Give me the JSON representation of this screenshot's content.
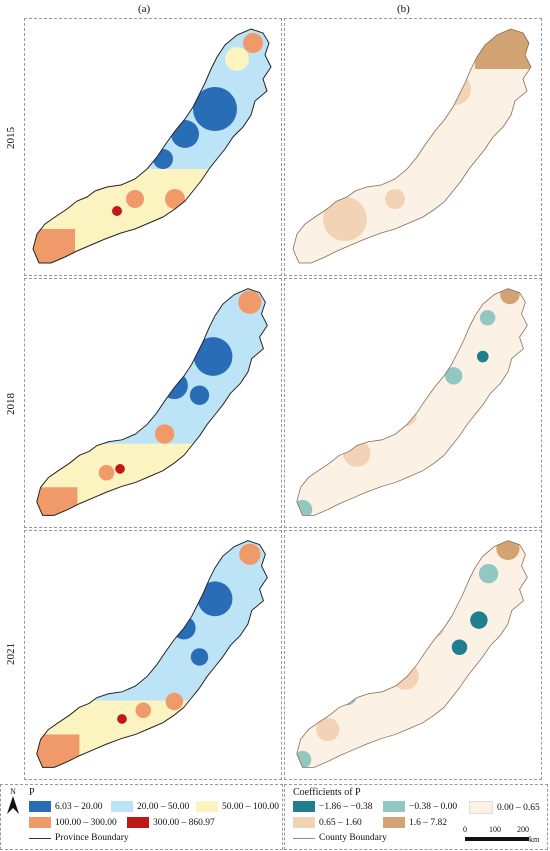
{
  "columns": [
    "(a)",
    "(b)"
  ],
  "rows": [
    "2015",
    "2018",
    "2021"
  ],
  "legend_left": {
    "title": "P",
    "items": [
      {
        "label": "6.03 – 20.00",
        "color": "#2a6db7"
      },
      {
        "label": "20.00 – 50.00",
        "color": "#bde4f6"
      },
      {
        "label": "50.00 – 100.00",
        "color": "#fbf3c0"
      },
      {
        "label": "100.00 – 300.00",
        "color": "#ef9a68"
      },
      {
        "label": "300.00 – 860.97",
        "color": "#c01818"
      }
    ],
    "boundary": "Province Boundary"
  },
  "legend_right": {
    "title": "Coefficients of P",
    "items": [
      {
        "label": "−1.86 – −0.38",
        "color": "#1f7f8f"
      },
      {
        "label": "−0.38 – 0.00",
        "color": "#93c8c2"
      },
      {
        "label": "0.00 – 0.65",
        "color": "#fbf1e4"
      },
      {
        "label": "0.65 – 1.60",
        "color": "#f3d3b5"
      },
      {
        "label": "1.6 – 7.82",
        "color": "#d2a473"
      }
    ],
    "boundary": "County Boundary"
  },
  "north": "N",
  "scale": {
    "ticks": [
      "0",
      "100",
      "200"
    ],
    "unit": "km"
  }
}
